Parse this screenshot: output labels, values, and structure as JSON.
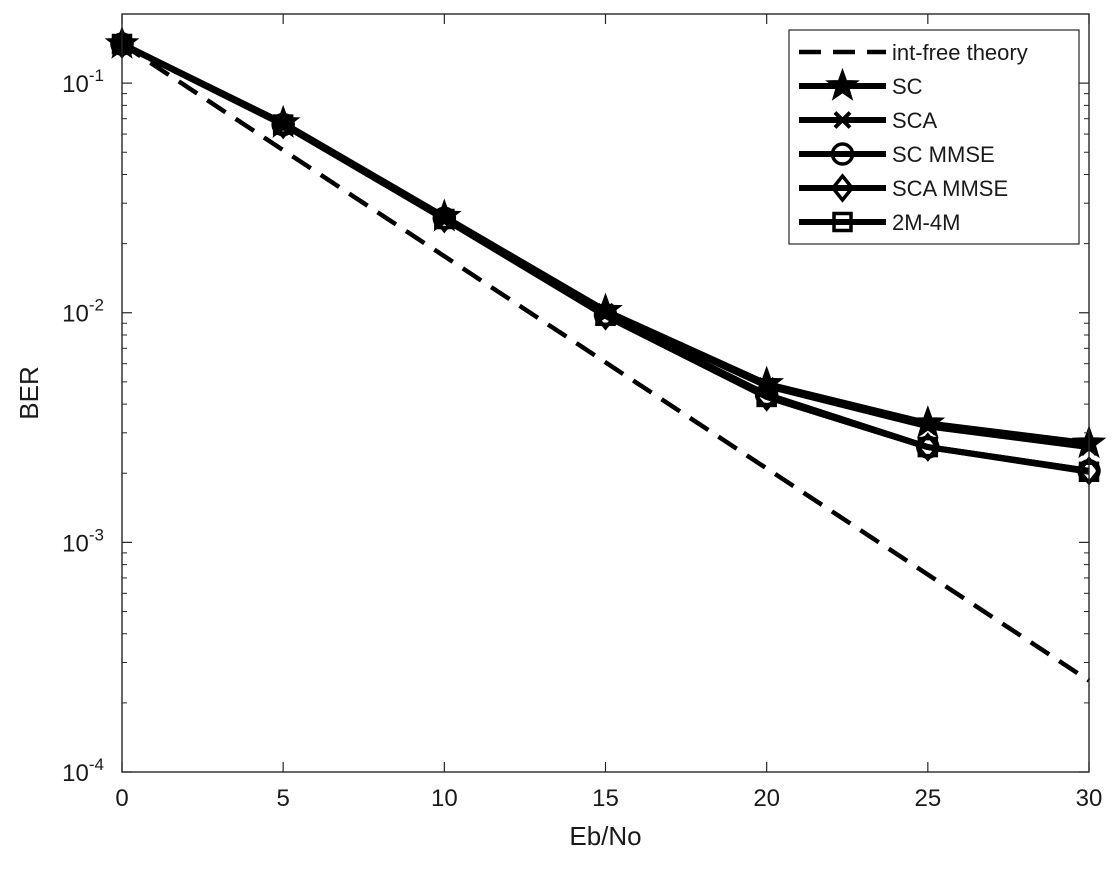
{
  "chart_data": {
    "type": "line",
    "title": "",
    "xlabel": "Eb/No",
    "ylabel": "BER",
    "xlim": [
      0,
      30
    ],
    "ylim": [
      0.0001,
      0.2
    ],
    "yscale": "log",
    "grid": false,
    "legend_position": "top-right",
    "x_ticks": [
      {
        "value": 0,
        "label": "0"
      },
      {
        "value": 5,
        "label": "5"
      },
      {
        "value": 10,
        "label": "10"
      },
      {
        "value": 15,
        "label": "15"
      },
      {
        "value": 20,
        "label": "20"
      },
      {
        "value": 25,
        "label": "25"
      },
      {
        "value": 30,
        "label": "30"
      }
    ],
    "y_ticks": [
      {
        "value": 0.1,
        "base": "10",
        "exp": "-1"
      },
      {
        "value": 0.01,
        "base": "10",
        "exp": "-2"
      },
      {
        "value": 0.001,
        "base": "10",
        "exp": "-3"
      },
      {
        "value": 0.0001,
        "base": "10",
        "exp": "-4"
      }
    ],
    "x": [
      0,
      5,
      10,
      15,
      20,
      25,
      30
    ],
    "series": [
      {
        "name": "int-free theory",
        "style": "dashed",
        "marker": "none",
        "x": [
          0,
          30
        ],
        "values": [
          0.148,
          0.00025
        ]
      },
      {
        "name": "SC",
        "style": "solid",
        "marker": "star",
        "values": [
          0.148,
          0.067,
          0.0262,
          0.0102,
          0.0049,
          0.0033,
          0.0027
        ]
      },
      {
        "name": "SCA",
        "style": "solid",
        "marker": "x",
        "values": [
          0.148,
          0.066,
          0.026,
          0.0101,
          0.0048,
          0.0032,
          0.0026
        ]
      },
      {
        "name": "SC MMSE",
        "style": "solid",
        "marker": "circle",
        "values": [
          0.148,
          0.066,
          0.0258,
          0.0098,
          0.0044,
          0.0026,
          0.00205
        ]
      },
      {
        "name": "SCA MMSE",
        "style": "solid",
        "marker": "diamond",
        "values": [
          0.148,
          0.066,
          0.0257,
          0.0097,
          0.0043,
          0.0026,
          0.00205
        ]
      },
      {
        "name": "2M-4M",
        "style": "solid",
        "marker": "square",
        "values": [
          0.148,
          0.066,
          0.0256,
          0.0097,
          0.0043,
          0.0026,
          0.00203
        ]
      }
    ],
    "colors": {
      "line": "#000000",
      "axis": "#262626"
    }
  }
}
